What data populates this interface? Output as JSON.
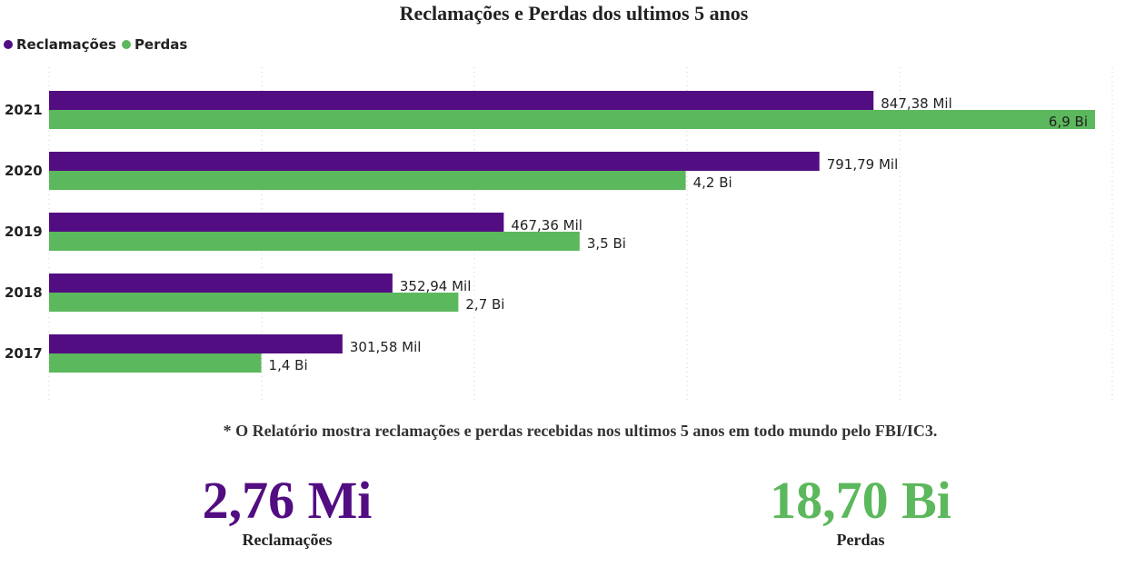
{
  "chart_data": {
    "type": "bar",
    "orientation": "horizontal",
    "title": "Reclamações e Perdas dos ultimos 5 anos",
    "legend_position": "top-left",
    "grid": true,
    "categories": [
      "2021",
      "2020",
      "2019",
      "2018",
      "2017"
    ],
    "series": [
      {
        "name": "Reclamações",
        "color": "#520d82",
        "values": [
          847376,
          791790,
          467361,
          352936,
          301580
        ],
        "labels": [
          "847,38 Mil",
          "791,79 Mil",
          "467,36 Mil",
          "352,94 Mil",
          "301,58 Mil"
        ]
      },
      {
        "name": "Perdas",
        "color": "#5cb85c",
        "values": [
          6.9,
          4.2,
          3.5,
          2.7,
          1.4
        ],
        "labels": [
          "6,9 Bi",
          "4,2 Bi",
          "3,5 Bi",
          "2,7 Bi",
          "1,4 Bi"
        ]
      }
    ]
  },
  "footnote": "* O Relatório mostra reclamações e perdas recebidas nos ultimos 5 anos em todo mundo pelo FBI/IC3.",
  "kpis": {
    "reclamacoes": {
      "value": "2,76 Mi",
      "label": "Reclamações",
      "color": "#520d82"
    },
    "perdas": {
      "value": "18,70 Bi",
      "label": "Perdas",
      "color": "#5cb85c"
    }
  }
}
